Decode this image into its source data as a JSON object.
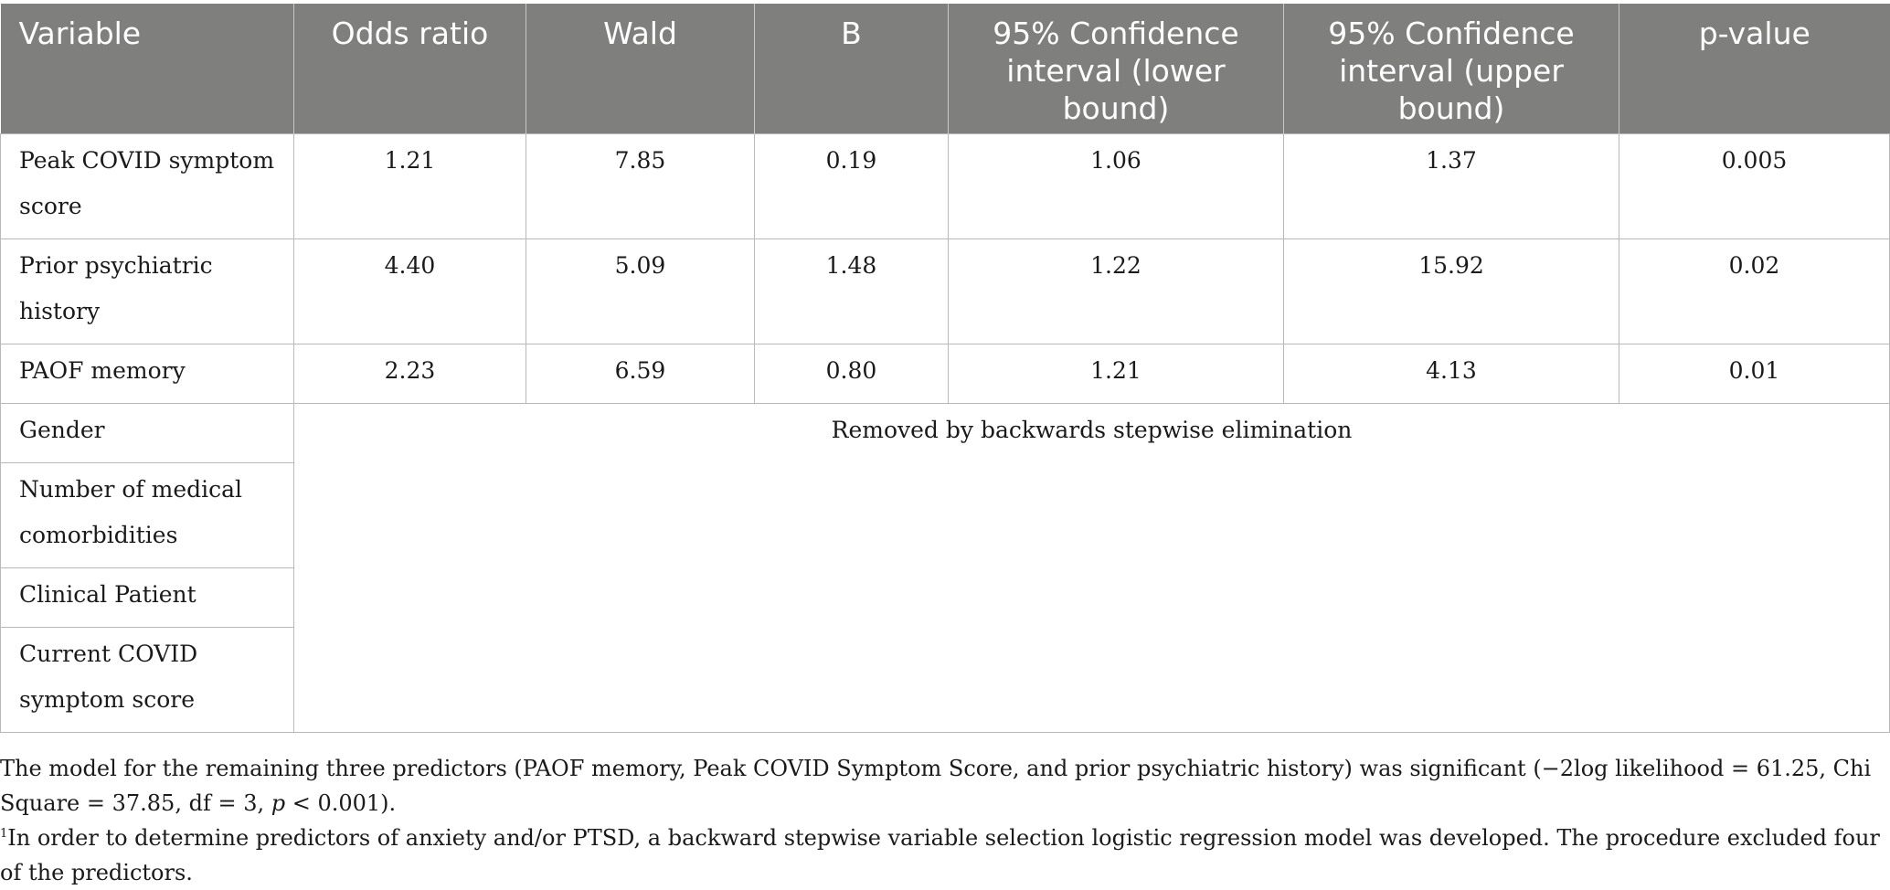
{
  "table": {
    "headers": [
      "Variable",
      "Odds ratio",
      "Wald",
      "B",
      "95% Confidence interval (lower bound)",
      "95% Confidence interval (upper bound)",
      "p-value"
    ],
    "rows": [
      {
        "variable": "Peak COVID symptom score",
        "odds_ratio": "1.21",
        "wald": "7.85",
        "b": "0.19",
        "ci_lower": "1.06",
        "ci_upper": "1.37",
        "p": "0.005"
      },
      {
        "variable": "Prior psychiatric history",
        "odds_ratio": "4.40",
        "wald": "5.09",
        "b": "1.48",
        "ci_lower": "1.22",
        "ci_upper": "15.92",
        "p": "0.02"
      },
      {
        "variable": "PAOF memory",
        "odds_ratio": "2.23",
        "wald": "6.59",
        "b": "0.80",
        "ci_lower": "1.21",
        "ci_upper": "4.13",
        "p": "0.01"
      }
    ],
    "removed_variables": [
      "Gender",
      "Number of medical comorbidities",
      "Clinical Patient",
      "Current COVID symptom score"
    ],
    "removed_note": "Removed by backwards stepwise elimination"
  },
  "notes": {
    "model_a": "The model for the remaining three predictors (PAOF memory, Peak COVID Symptom Score, and prior psychiatric history) was significant (−2log likelihood = 61.25, Chi Square = 37.85, df = 3, ",
    "model_p": "p",
    "model_b": " < 0.001).",
    "footnote_mark": "1",
    "footnote": "In order to determine predictors of anxiety and/or PTSD, a backward stepwise variable selection logistic regression model was developed. The procedure excluded four of the predictors."
  }
}
